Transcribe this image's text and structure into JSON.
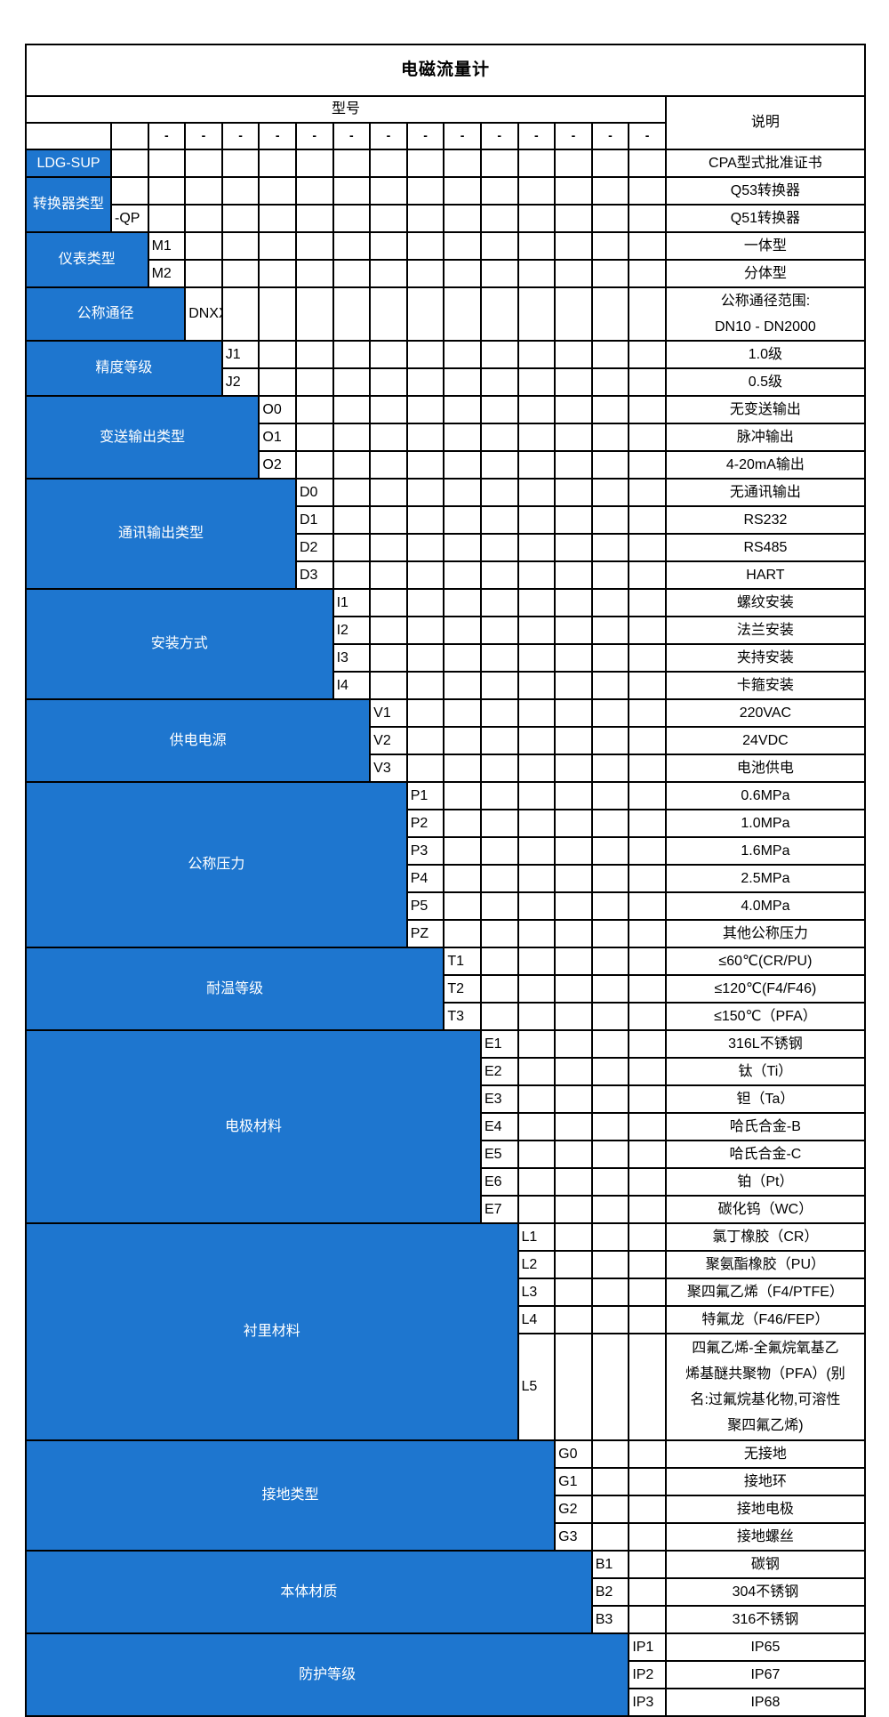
{
  "colors": {
    "accent_blue": "#1e76cf",
    "border": "#000000",
    "text_on_blue": "#ffffff",
    "text": "#000000"
  },
  "table": {
    "title": "电磁流量计",
    "model_header": "型号",
    "desc_header": "说明",
    "dash": "-",
    "sections": [
      {
        "key": "model-prefix",
        "label": "LDG-SUP",
        "span": 1,
        "has_code": false,
        "rows": [
          {
            "code": null,
            "desc": [
              "CPA型式批准证书"
            ],
            "h": 1
          }
        ]
      },
      {
        "key": "converter-type",
        "label": "转换器类型",
        "span": 1,
        "has_code": true,
        "rows": [
          {
            "code": "",
            "desc": [
              "Q53转换器"
            ],
            "h": 1
          },
          {
            "code": "-QP",
            "desc": [
              "Q51转换器"
            ],
            "h": 1
          }
        ]
      },
      {
        "key": "meter-type",
        "label": "仪表类型",
        "span": 2,
        "has_code": true,
        "rows": [
          {
            "code": "M1",
            "desc": [
              "一体型"
            ],
            "h": 1
          },
          {
            "code": "M2",
            "desc": [
              "分体型"
            ],
            "h": 1
          }
        ]
      },
      {
        "key": "nominal-diameter",
        "label": "公称通径",
        "span": 3,
        "has_code": true,
        "rows": [
          {
            "code": "DNXX",
            "desc": [
              "公称通径范围:",
              "DN10 - DN2000"
            ],
            "h": 2
          }
        ]
      },
      {
        "key": "accuracy-class",
        "label": "精度等级",
        "span": 4,
        "has_code": true,
        "rows": [
          {
            "code": "J1",
            "desc": [
              "1.0级"
            ],
            "h": 1
          },
          {
            "code": "J2",
            "desc": [
              "0.5级"
            ],
            "h": 1
          }
        ]
      },
      {
        "key": "transmit-output-type",
        "label": "变送输出类型",
        "span": 5,
        "has_code": true,
        "rows": [
          {
            "code": "O0",
            "desc": [
              "无变送输出"
            ],
            "h": 1
          },
          {
            "code": "O1",
            "desc": [
              "脉冲输出"
            ],
            "h": 1
          },
          {
            "code": "O2",
            "desc": [
              "4-20mA输出"
            ],
            "h": 1
          }
        ]
      },
      {
        "key": "comm-output-type",
        "label": "通讯输出类型",
        "span": 6,
        "has_code": true,
        "rows": [
          {
            "code": "D0",
            "desc": [
              "无通讯输出"
            ],
            "h": 1
          },
          {
            "code": "D1",
            "desc": [
              "RS232"
            ],
            "h": 1
          },
          {
            "code": "D2",
            "desc": [
              "RS485"
            ],
            "h": 1
          },
          {
            "code": "D3",
            "desc": [
              "HART"
            ],
            "h": 1
          }
        ]
      },
      {
        "key": "installation-type",
        "label": "安装方式",
        "span": 7,
        "has_code": true,
        "rows": [
          {
            "code": "I1",
            "desc": [
              "螺纹安装"
            ],
            "h": 1
          },
          {
            "code": "I2",
            "desc": [
              "法兰安装"
            ],
            "h": 1
          },
          {
            "code": "I3",
            "desc": [
              "夹持安装"
            ],
            "h": 1
          },
          {
            "code": "I4",
            "desc": [
              "卡箍安装"
            ],
            "h": 1
          }
        ]
      },
      {
        "key": "power-supply",
        "label": "供电电源",
        "span": 8,
        "has_code": true,
        "rows": [
          {
            "code": "V1",
            "desc": [
              "220VAC"
            ],
            "h": 1
          },
          {
            "code": "V2",
            "desc": [
              "24VDC"
            ],
            "h": 1
          },
          {
            "code": "V3",
            "desc": [
              "电池供电"
            ],
            "h": 1
          }
        ]
      },
      {
        "key": "nominal-pressure",
        "label": "公称压力",
        "span": 9,
        "has_code": true,
        "rows": [
          {
            "code": "P1",
            "desc": [
              "0.6MPa"
            ],
            "h": 1
          },
          {
            "code": "P2",
            "desc": [
              "1.0MPa"
            ],
            "h": 1
          },
          {
            "code": "P3",
            "desc": [
              "1.6MPa"
            ],
            "h": 1
          },
          {
            "code": "P4",
            "desc": [
              "2.5MPa"
            ],
            "h": 1
          },
          {
            "code": "P5",
            "desc": [
              "4.0MPa"
            ],
            "h": 1
          },
          {
            "code": "PZ",
            "desc": [
              "其他公称压力"
            ],
            "h": 1
          }
        ]
      },
      {
        "key": "temperature-class",
        "label": "耐温等级",
        "span": 10,
        "has_code": true,
        "rows": [
          {
            "code": "T1",
            "desc": [
              "≤60℃(CR/PU)"
            ],
            "h": 1
          },
          {
            "code": "T2",
            "desc": [
              "≤120℃(F4/F46)"
            ],
            "h": 1
          },
          {
            "code": "T3",
            "desc": [
              "≤150℃（PFA）"
            ],
            "h": 1
          }
        ]
      },
      {
        "key": "electrode-material",
        "label": "电极材料",
        "span": 11,
        "has_code": true,
        "rows": [
          {
            "code": "E1",
            "desc": [
              "316L不锈钢"
            ],
            "h": 1
          },
          {
            "code": "E2",
            "desc": [
              "钛（Ti）"
            ],
            "h": 1
          },
          {
            "code": "E3",
            "desc": [
              "钽（Ta）"
            ],
            "h": 1
          },
          {
            "code": "E4",
            "desc": [
              "哈氏合金-B"
            ],
            "h": 1
          },
          {
            "code": "E5",
            "desc": [
              "哈氏合金-C"
            ],
            "h": 1
          },
          {
            "code": "E6",
            "desc": [
              "铂（Pt）"
            ],
            "h": 1
          },
          {
            "code": "E7",
            "desc": [
              "碳化钨（WC）"
            ],
            "h": 1
          }
        ]
      },
      {
        "key": "lining-material",
        "label": "衬里材料",
        "span": 12,
        "has_code": true,
        "rows": [
          {
            "code": "L1",
            "desc": [
              "氯丁橡胶（CR）"
            ],
            "h": 1
          },
          {
            "code": "L2",
            "desc": [
              "聚氨酯橡胶（PU）"
            ],
            "h": 1
          },
          {
            "code": "L3",
            "desc": [
              "聚四氟乙烯（F4/PTFE）"
            ],
            "h": 1
          },
          {
            "code": "L4",
            "desc": [
              "特氟龙（F46/FEP）"
            ],
            "h": 1
          },
          {
            "code": "L5",
            "desc": [
              "四氟乙烯-全氟烷氧基乙",
              "烯基醚共聚物（PFA）(别",
              "名:过氟烷基化物,可溶性",
              "聚四氟乙烯)"
            ],
            "h": 4
          }
        ]
      },
      {
        "key": "grounding-type",
        "label": "接地类型",
        "span": 13,
        "has_code": true,
        "rows": [
          {
            "code": "G0",
            "desc": [
              "无接地"
            ],
            "h": 1
          },
          {
            "code": "G1",
            "desc": [
              "接地环"
            ],
            "h": 1
          },
          {
            "code": "G2",
            "desc": [
              "接地电极"
            ],
            "h": 1
          },
          {
            "code": "G3",
            "desc": [
              "接地螺丝"
            ],
            "h": 1
          }
        ]
      },
      {
        "key": "body-material",
        "label": "本体材质",
        "span": 14,
        "has_code": true,
        "rows": [
          {
            "code": "B1",
            "desc": [
              "碳钢"
            ],
            "h": 1
          },
          {
            "code": "B2",
            "desc": [
              "304不锈钢"
            ],
            "h": 1
          },
          {
            "code": "B3",
            "desc": [
              "316不锈钢"
            ],
            "h": 1
          }
        ]
      },
      {
        "key": "protection-class",
        "label": "防护等级",
        "span": 15,
        "has_code": true,
        "rows": [
          {
            "code": "IP1",
            "desc": [
              "IP65"
            ],
            "h": 1
          },
          {
            "code": "IP2",
            "desc": [
              "IP67"
            ],
            "h": 1
          },
          {
            "code": "IP3",
            "desc": [
              "IP68"
            ],
            "h": 1
          }
        ]
      }
    ]
  }
}
